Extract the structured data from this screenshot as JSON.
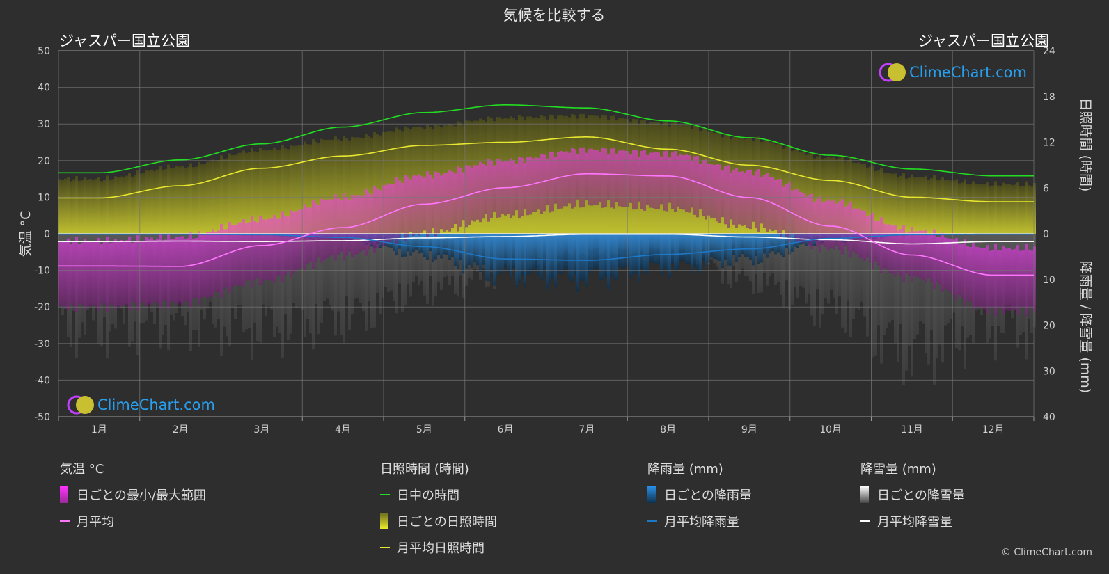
{
  "title": "気候を比較する",
  "location_left": "ジャスパー国立公園",
  "location_right": "ジャスパー国立公園",
  "copyright": "© ClimeChart.com",
  "logo_text": "ClimeChart.com",
  "colors": {
    "background": "#2e2e2e",
    "daylight": "#22dd22",
    "sunshine_line": "#e8e830",
    "sunshine_fill": "#8a8a2a",
    "temp_range": "#d05cc0",
    "temp_avg": "#ff77ff",
    "rain": "#1e78c8",
    "snow_line": "#ffffff",
    "snow_fill": "#8a8a8a"
  },
  "legend": {
    "temperature": {
      "heading": "気温 °C",
      "range_label": "日ごとの最小/最大範囲",
      "avg_label": "月平均"
    },
    "sunshine": {
      "heading": "日照時間 (時間)",
      "daylight_label": "日中の時間",
      "daily_label": "日ごとの日照時間",
      "avg_label": "月平均日照時間"
    },
    "rain": {
      "heading": "降雨量 (mm)",
      "daily_label": "日ごとの降雨量",
      "avg_label": "月平均降雨量"
    },
    "snow": {
      "heading": "降雪量 (mm)",
      "daily_label": "日ごとの降雪量",
      "avg_label": "月平均降雪量"
    }
  },
  "chart_data": {
    "type": "line",
    "categories": [
      "1月",
      "2月",
      "3月",
      "4月",
      "5月",
      "6月",
      "7月",
      "8月",
      "9月",
      "10月",
      "11月",
      "12月"
    ],
    "y_left": {
      "label": "気温 °C",
      "range": [
        -50,
        50
      ],
      "ticks": [
        "50",
        "40",
        "30",
        "20",
        "10",
        "0",
        "-10",
        "-20",
        "-30",
        "-40",
        "-50"
      ]
    },
    "y_right_top": {
      "label": "日照時間 (時間)",
      "range": [
        0,
        24
      ],
      "ticks": [
        "24",
        "18",
        "12",
        "6",
        "0"
      ]
    },
    "y_right_bottom": {
      "label": "降雨量 / 降雪量 (mm)",
      "range": [
        0,
        40
      ],
      "ticks": [
        "10",
        "20",
        "30",
        "40"
      ]
    },
    "grid": true,
    "series": [
      {
        "name": "日中の時間",
        "axis": "sunshine",
        "values": [
          8.0,
          9.7,
          11.8,
          14.0,
          15.9,
          16.9,
          16.5,
          14.8,
          12.6,
          10.3,
          8.5,
          7.6
        ]
      },
      {
        "name": "月平均日照時間",
        "axis": "sunshine",
        "values": [
          4.7,
          6.3,
          8.6,
          10.2,
          11.6,
          12.0,
          12.7,
          11.1,
          9.0,
          7.0,
          4.8,
          4.2
        ]
      },
      {
        "name": "月平均",
        "axis": "temperature",
        "values": [
          -8.8,
          -8.9,
          -3.2,
          1.7,
          8.1,
          12.6,
          16.4,
          15.8,
          9.9,
          2.1,
          -5.8,
          -11.3
        ]
      },
      {
        "name": "月平均降雨量",
        "axis": "precipitation",
        "values": [
          0.1,
          0.1,
          0.2,
          0.8,
          2.8,
          5.5,
          5.8,
          4.5,
          3.3,
          1.0,
          0.2,
          0.1
        ]
      },
      {
        "name": "月平均降雪量",
        "axis": "precipitation",
        "values": [
          1.7,
          1.6,
          1.7,
          1.5,
          0.9,
          0.6,
          0.1,
          0.1,
          0.7,
          1.3,
          2.2,
          1.7
        ]
      }
    ],
    "daily_ranges": {
      "temp_max": [
        -2,
        -1,
        4,
        10,
        16,
        20,
        23,
        22,
        17,
        9,
        1,
        -4
      ],
      "temp_min": [
        -20,
        -19,
        -13,
        -6,
        0,
        5,
        8,
        7,
        2,
        -4,
        -12,
        -21
      ],
      "sunshine_max": [
        7.2,
        8.8,
        11.0,
        12.5,
        14.0,
        15.2,
        15.5,
        14.5,
        12.5,
        10.0,
        7.5,
        6.5
      ]
    }
  }
}
